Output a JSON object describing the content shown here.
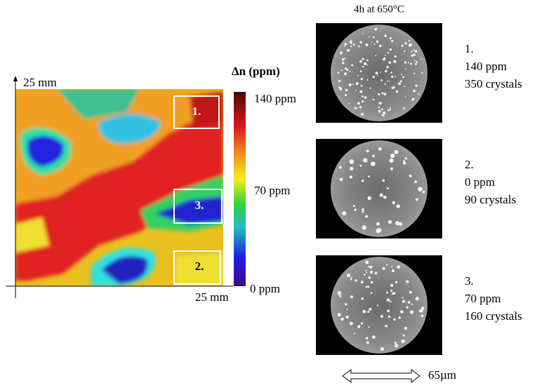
{
  "heatmap": {
    "y_axis_label": "25 mm",
    "x_axis_label": "25 mm",
    "colorbar": {
      "title": "Δn (ppm)",
      "labels": [
        "140 ppm",
        "70 ppm",
        "0 ppm"
      ]
    },
    "regions": [
      "1.",
      "2.",
      "3."
    ]
  },
  "micrographs": {
    "title": "4h at 650°C",
    "panels": [
      {
        "number": "1.",
        "delta": "140 ppm",
        "crystals": "350 crystals"
      },
      {
        "number": "2.",
        "delta": "0 ppm",
        "crystals": "90 crystals"
      },
      {
        "number": "3.",
        "delta": "70 ppm",
        "crystals": "160 crystals"
      }
    ],
    "scale": "65µm"
  }
}
